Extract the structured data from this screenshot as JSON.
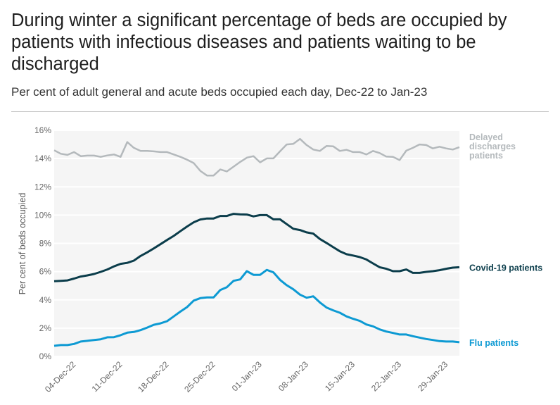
{
  "title": "During winter a significant percentage of beds are occupied by patients with infectious diseases and patients waiting to be discharged",
  "subtitle": "Per cent of adult general and acute beds occupied each day, Dec-22 to Jan-23",
  "chart_data": {
    "type": "line",
    "ylabel": "Per cent of beds occupied",
    "xlabel": "",
    "ylim": [
      0,
      16
    ],
    "yticks": [
      "0%",
      "2%",
      "4%",
      "6%",
      "8%",
      "10%",
      "12%",
      "14%",
      "16%"
    ],
    "xlim": [
      "01-Dec-22",
      "31-Jan-23"
    ],
    "xticks": [
      "04-Dec-22",
      "11-Dec-22",
      "18-Dec-22",
      "25-Dec-22",
      "01-Jan-23",
      "08-Jan-23",
      "15-Jan-23",
      "22-Jan-23",
      "29-Jan-23"
    ],
    "grid": true,
    "legend": "direct labels at right end of lines",
    "x": [
      "01-Dec-22",
      "02-Dec-22",
      "03-Dec-22",
      "04-Dec-22",
      "05-Dec-22",
      "06-Dec-22",
      "07-Dec-22",
      "08-Dec-22",
      "09-Dec-22",
      "10-Dec-22",
      "11-Dec-22",
      "12-Dec-22",
      "13-Dec-22",
      "14-Dec-22",
      "15-Dec-22",
      "16-Dec-22",
      "17-Dec-22",
      "18-Dec-22",
      "19-Dec-22",
      "20-Dec-22",
      "21-Dec-22",
      "22-Dec-22",
      "23-Dec-22",
      "24-Dec-22",
      "25-Dec-22",
      "26-Dec-22",
      "27-Dec-22",
      "28-Dec-22",
      "29-Dec-22",
      "30-Dec-22",
      "31-Dec-22",
      "01-Jan-23",
      "02-Jan-23",
      "03-Jan-23",
      "04-Jan-23",
      "05-Jan-23",
      "06-Jan-23",
      "07-Jan-23",
      "08-Jan-23",
      "09-Jan-23",
      "10-Jan-23",
      "11-Jan-23",
      "12-Jan-23",
      "13-Jan-23",
      "14-Jan-23",
      "15-Jan-23",
      "16-Jan-23",
      "17-Jan-23",
      "18-Jan-23",
      "19-Jan-23",
      "20-Jan-23",
      "21-Jan-23",
      "22-Jan-23",
      "23-Jan-23",
      "24-Jan-23",
      "25-Jan-23",
      "26-Jan-23",
      "27-Jan-23",
      "28-Jan-23",
      "29-Jan-23",
      "30-Jan-23",
      "31-Jan-23"
    ],
    "series": [
      {
        "name": "Delayed discharges patients",
        "label_lines": [
          "Delayed",
          "discharges",
          "patients"
        ],
        "color": "#b4b9bc",
        "values": [
          14.59,
          14.34,
          14.26,
          14.46,
          14.17,
          14.21,
          14.21,
          14.12,
          14.22,
          14.29,
          14.12,
          15.17,
          14.76,
          14.54,
          14.54,
          14.51,
          14.46,
          14.46,
          14.29,
          14.12,
          13.92,
          13.68,
          13.13,
          12.8,
          12.8,
          13.23,
          13.09,
          13.43,
          13.76,
          14.06,
          14.17,
          13.73,
          14.01,
          14.01,
          14.51,
          15.0,
          15.04,
          15.39,
          14.96,
          14.64,
          14.54,
          14.89,
          14.87,
          14.54,
          14.62,
          14.46,
          14.46,
          14.29,
          14.54,
          14.39,
          14.14,
          14.12,
          13.89,
          14.56,
          14.76,
          15.0,
          14.96,
          14.72,
          14.84,
          14.72,
          14.64,
          14.81
        ]
      },
      {
        "name": "Covid-19 patients",
        "label_lines": [
          "Covid-19 patients"
        ],
        "color": "#0b3d4b",
        "values": [
          5.32,
          5.35,
          5.38,
          5.51,
          5.65,
          5.73,
          5.83,
          5.98,
          6.15,
          6.37,
          6.55,
          6.62,
          6.78,
          7.11,
          7.36,
          7.64,
          7.94,
          8.24,
          8.53,
          8.86,
          9.19,
          9.49,
          9.69,
          9.76,
          9.76,
          9.94,
          9.94,
          10.09,
          10.05,
          10.04,
          9.91,
          10.0,
          10.0,
          9.7,
          9.7,
          9.36,
          9.03,
          8.94,
          8.78,
          8.69,
          8.31,
          8.03,
          7.73,
          7.44,
          7.23,
          7.14,
          7.03,
          6.86,
          6.58,
          6.31,
          6.2,
          6.03,
          6.03,
          6.15,
          5.91,
          5.91,
          5.98,
          6.03,
          6.1,
          6.2,
          6.28,
          6.31
        ]
      },
      {
        "name": "Flu patients",
        "label_lines": [
          "Flu patients"
        ],
        "color": "#0d9ad3",
        "values": [
          0.75,
          0.8,
          0.8,
          0.88,
          1.05,
          1.1,
          1.16,
          1.21,
          1.35,
          1.36,
          1.5,
          1.68,
          1.73,
          1.86,
          2.04,
          2.24,
          2.34,
          2.49,
          2.83,
          3.17,
          3.49,
          3.95,
          4.12,
          4.17,
          4.17,
          4.7,
          4.9,
          5.35,
          5.45,
          6.03,
          5.77,
          5.77,
          6.12,
          5.95,
          5.42,
          5.04,
          4.75,
          4.37,
          4.15,
          4.25,
          3.82,
          3.46,
          3.26,
          3.09,
          2.83,
          2.66,
          2.51,
          2.26,
          2.13,
          1.91,
          1.76,
          1.66,
          1.55,
          1.55,
          1.43,
          1.33,
          1.23,
          1.16,
          1.08,
          1.05,
          1.05,
          1.0
        ]
      }
    ]
  }
}
